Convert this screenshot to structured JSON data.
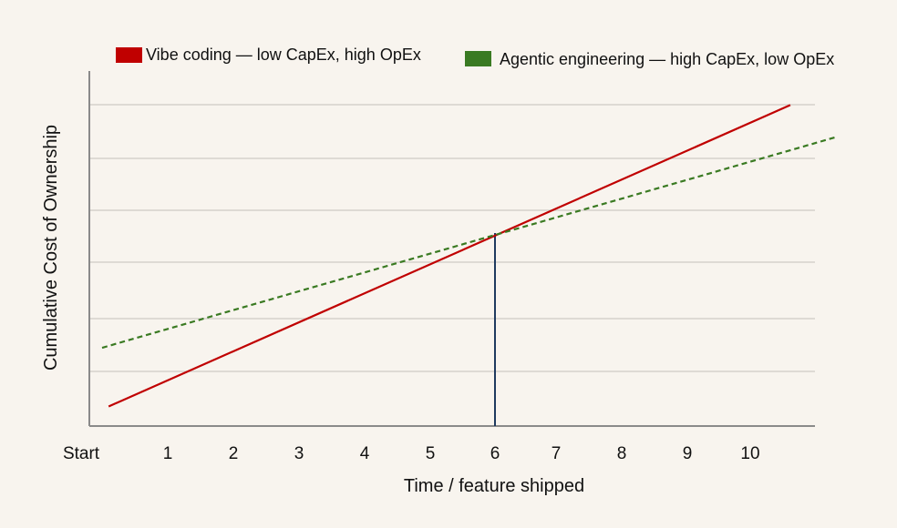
{
  "chart_data": {
    "type": "line",
    "title": "",
    "xlabel": "Time / feature shipped",
    "ylabel": "Cumulative Cost of Ownership",
    "x_tick_labels": [
      "Start",
      "1",
      "2",
      "3",
      "4",
      "5",
      "6",
      "7",
      "8",
      "9",
      "10"
    ],
    "xlim": [
      0,
      11
    ],
    "ylim": [
      0,
      6
    ],
    "y_ticks_labeled": false,
    "grid": true,
    "legend_placement": "top",
    "series": [
      {
        "name": "Vibe coding — low CapEx, high OpEx",
        "color": "#c00000",
        "line_style": "solid",
        "x": [
          0.1,
          10.5
        ],
        "y": [
          0.35,
          6.0
        ]
      },
      {
        "name": "Agentic engineering — high CapEx, low OpEx",
        "color": "#3a7a22",
        "line_style": "dashed",
        "x": [
          0,
          11.2
        ],
        "y": [
          1.45,
          5.4
        ]
      }
    ],
    "annotations": [
      {
        "type": "vertical-line",
        "x": 6,
        "y_from": 0,
        "y_to": 3.6,
        "color": "#1f3a5f",
        "meaning": "crossover point"
      }
    ]
  }
}
